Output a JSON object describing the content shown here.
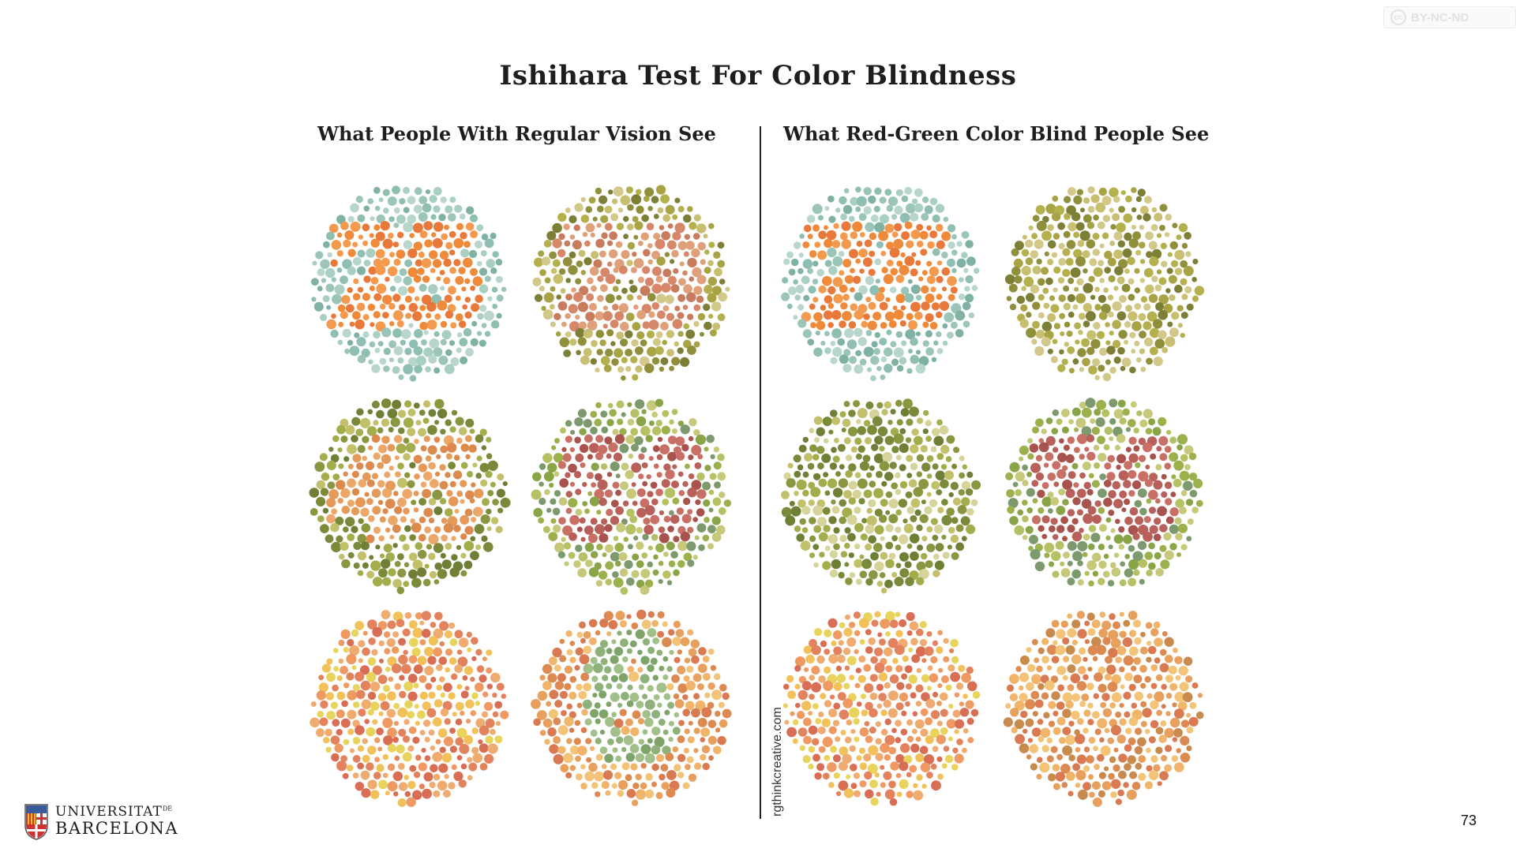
{
  "license": {
    "label": "BY-NC-ND",
    "icon": "cc-icon"
  },
  "title": "Ishihara Test For Color Blindness",
  "columns": {
    "left_heading": "What People With Regular Vision See",
    "right_heading": "What Red-Green Color Blind People See"
  },
  "credit": "rgthinkcreative.com",
  "plates": [
    {
      "panel": "regular",
      "label": "25",
      "bg": [
        "#8ebfb2",
        "#a9cfc3",
        "#7fb1a4",
        "#b8d6cc",
        "#9cc5b9"
      ],
      "fg": [
        "#ef8a3a",
        "#e8793a",
        "#f39a4e"
      ],
      "stroke_w": 0.1
    },
    {
      "panel": "regular",
      "label": "29",
      "bg": [
        "#8f8f3c",
        "#b5b04e",
        "#a8a446",
        "#c8c070",
        "#7d7f36",
        "#d2c88a"
      ],
      "fg": [
        "#d6876a",
        "#c97b5d",
        "#e0a07a"
      ],
      "stroke_w": 0.085
    },
    {
      "panel": "colorblind",
      "label": "25",
      "bg": [
        "#8ebfb2",
        "#a9cfc3",
        "#7fb1a4",
        "#b8d6cc",
        "#9cc5b9"
      ],
      "fg": [
        "#ef8a3a",
        "#e8793a",
        "#f39a4e"
      ],
      "stroke_w": 0.1
    },
    {
      "panel": "colorblind",
      "label": "",
      "bg": [
        "#8f8f3c",
        "#b5b04e",
        "#a8a446",
        "#c8c070",
        "#7d7f36",
        "#d2c88a"
      ],
      "fg": [],
      "stroke_w": 0
    },
    {
      "panel": "regular",
      "label": "45",
      "bg": [
        "#8a9640",
        "#a4ad4c",
        "#7a8a3a",
        "#c2c06a",
        "#6f7f35"
      ],
      "fg": [
        "#e69a5a",
        "#dd8a4e",
        "#eba86a"
      ],
      "stroke_w": 0.085
    },
    {
      "panel": "regular",
      "label": "56",
      "bg": [
        "#9cb04c",
        "#b6c064",
        "#8aa448",
        "#c6c87a",
        "#7c9a6e"
      ],
      "fg": [
        "#b8615a",
        "#a9534e",
        "#c97066"
      ],
      "stroke_w": 0.07
    },
    {
      "panel": "colorblind",
      "label": "",
      "bg": [
        "#8a9640",
        "#a4ad4c",
        "#7a8a3a",
        "#c2c06a",
        "#6f7f35",
        "#d6d49a"
      ],
      "fg": [],
      "stroke_w": 0
    },
    {
      "panel": "colorblind",
      "label": "56",
      "bg": [
        "#9cb04c",
        "#b6c064",
        "#8aa448",
        "#c6c87a",
        "#7c9a6e"
      ],
      "fg": [
        "#b8615a",
        "#a9534e",
        "#c97066"
      ],
      "stroke_w": 0.07
    },
    {
      "panel": "regular",
      "label": "",
      "bg": [
        "#e2835e",
        "#ee9a62",
        "#f2c15a",
        "#e8d45c",
        "#d86f55",
        "#f0ab70"
      ],
      "fg": [],
      "stroke_w": 0
    },
    {
      "panel": "regular",
      "label": "8",
      "bg": [
        "#e8a05e",
        "#f0b46a",
        "#dc8a52",
        "#f3c478",
        "#d97a52"
      ],
      "fg": [
        "#8fb27a",
        "#a2c08a",
        "#7ea46a"
      ],
      "stroke_w": 0.09
    },
    {
      "panel": "colorblind",
      "label": "",
      "bg": [
        "#e2835e",
        "#ee9a62",
        "#f2c15a",
        "#e8d45c",
        "#d86f55",
        "#f0ab70"
      ],
      "fg": [],
      "stroke_w": 0
    },
    {
      "panel": "colorblind",
      "label": "",
      "bg": [
        "#e8a05e",
        "#f0b46a",
        "#dc8a52",
        "#f3c478",
        "#d97a52",
        "#c98a4e"
      ],
      "fg": [],
      "stroke_w": 0
    }
  ],
  "footer": {
    "logo_line1": "UNIVERSITAT",
    "logo_line1_suffix": "DE",
    "logo_line2": "BARCELONA",
    "page_number": "73"
  }
}
